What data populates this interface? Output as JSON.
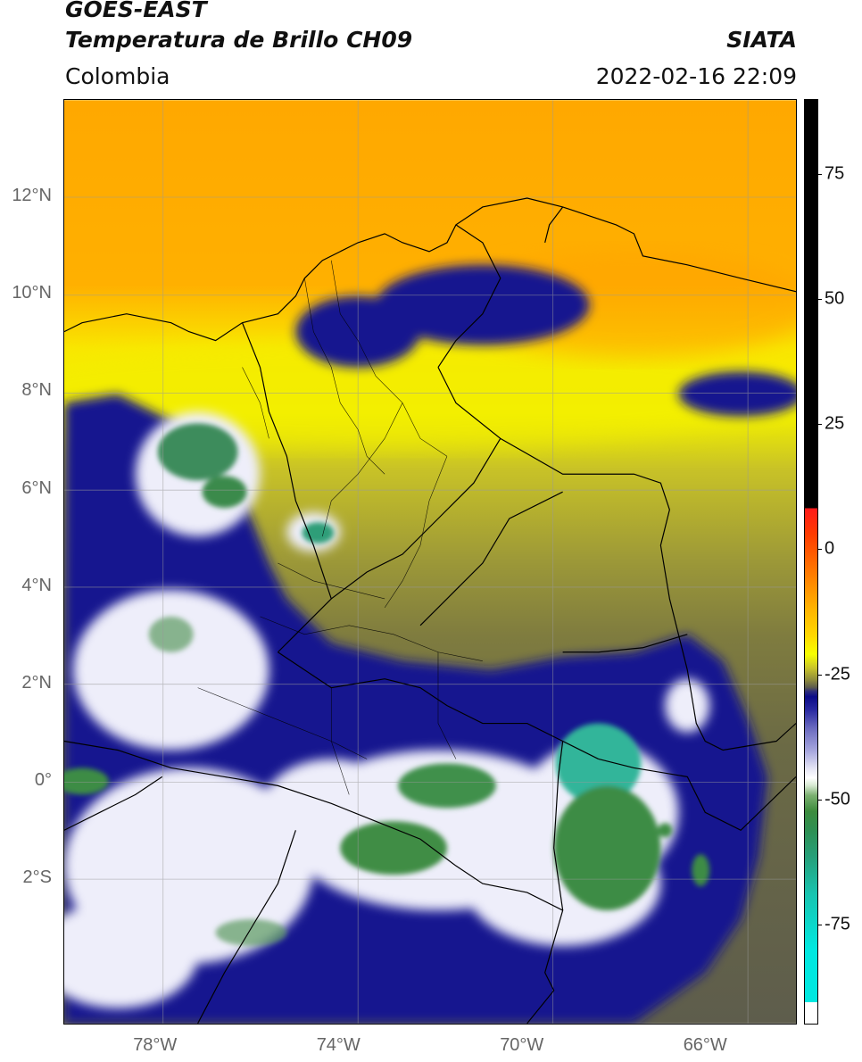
{
  "header": {
    "satellite": "GOES-EAST",
    "product": "Temperatura de Brillo CH09",
    "region": "Colombia",
    "agency": "SIATA",
    "datetime": "2022-02-16 22:09"
  },
  "map": {
    "lon_range": [
      -80,
      -64
    ],
    "lat_range": [
      -5,
      14
    ],
    "lat_ticks": [
      {
        "value": 12,
        "label": "12°N"
      },
      {
        "value": 10,
        "label": "10°N"
      },
      {
        "value": 8,
        "label": "8°N"
      },
      {
        "value": 6,
        "label": "6°N"
      },
      {
        "value": 4,
        "label": "4°N"
      },
      {
        "value": 2,
        "label": "2°N"
      },
      {
        "value": 0,
        "label": "0°"
      },
      {
        "value": -2,
        "label": "2°S"
      }
    ],
    "lon_ticks": [
      {
        "value": -78,
        "label": "78°W"
      },
      {
        "value": -74,
        "label": "74°W"
      },
      {
        "value": -70,
        "label": "70°W"
      },
      {
        "value": -66,
        "label": "66°W"
      }
    ],
    "gridlines": true
  },
  "colorbar": {
    "range": [
      -95,
      90
    ],
    "ticks": [
      {
        "value": 75,
        "label": "75"
      },
      {
        "value": 50,
        "label": "50"
      },
      {
        "value": 25,
        "label": "25"
      },
      {
        "value": 0,
        "label": "0"
      },
      {
        "value": -25,
        "label": "-25"
      },
      {
        "value": -50,
        "label": "-50"
      },
      {
        "value": -75,
        "label": "-75"
      }
    ]
  },
  "colors": {
    "warm_sky": "#ffa200",
    "clear_yellow": "#f5ee00",
    "olive": "#7d7a3a",
    "cloud_navy": "#151590",
    "cloud_white": "#f2f2fb",
    "cold_green": "#3c8c45",
    "coldest_teal": "#2fc4a4"
  }
}
